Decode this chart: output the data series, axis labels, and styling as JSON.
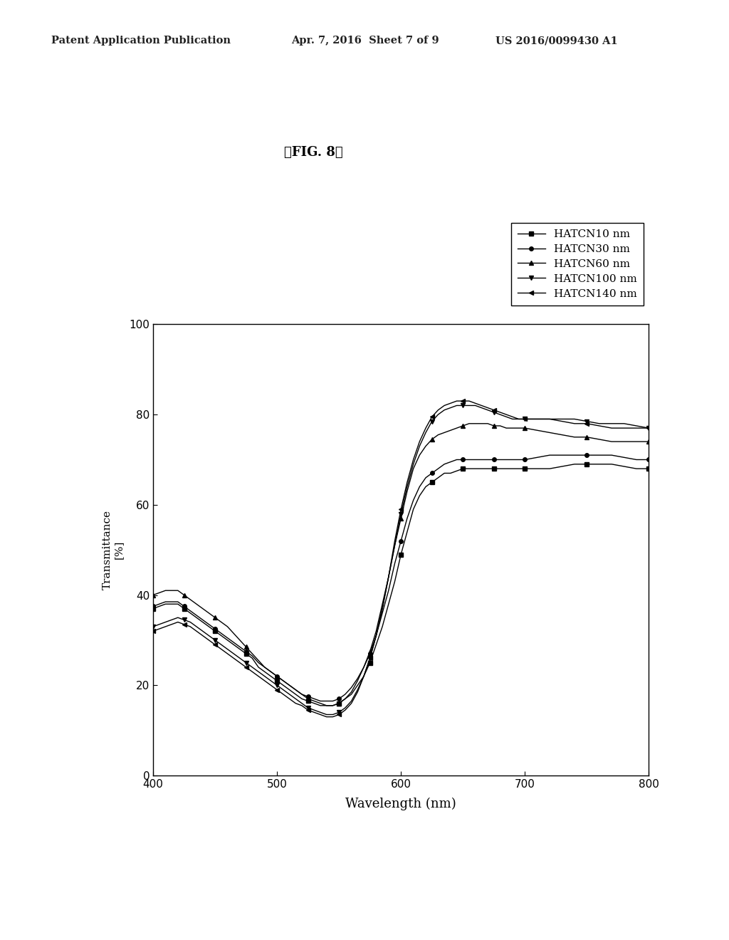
{
  "title": "【FIG. 8】",
  "header_left": "Patent Application Publication",
  "header_center": "Apr. 7, 2016  Sheet 7 of 9",
  "header_right": "US 2016/0099430 A1",
  "xlabel": "Wavelength (nm)",
  "ylabel": "Transmittance\n[%]",
  "xlim": [
    400,
    800
  ],
  "ylim": [
    0,
    100
  ],
  "xticks": [
    400,
    500,
    600,
    700,
    800
  ],
  "yticks": [
    0,
    20,
    40,
    60,
    80,
    100
  ],
  "legend_labels": [
    "HATCN10 nm",
    "HATCN30 nm",
    "HATCN60 nm",
    "HATCN100 nm",
    "HATCN140 nm"
  ],
  "series": {
    "HATCN10": {
      "y_at_x": {
        "400": 37,
        "405": 37.5,
        "410": 38,
        "415": 38,
        "420": 38,
        "425": 37,
        "430": 36,
        "435": 35,
        "440": 34,
        "445": 33,
        "450": 32,
        "455": 31,
        "460": 30,
        "465": 29,
        "470": 28,
        "475": 27,
        "480": 26,
        "485": 24,
        "490": 23,
        "495": 22,
        "500": 21,
        "505": 20,
        "510": 19,
        "515": 18,
        "520": 17,
        "525": 16.5,
        "530": 16,
        "535": 15.5,
        "540": 15.5,
        "545": 15.5,
        "550": 16,
        "555": 17,
        "560": 18,
        "565": 20,
        "570": 22,
        "575": 25,
        "580": 29,
        "585": 33,
        "590": 38,
        "595": 43,
        "600": 49,
        "605": 54,
        "610": 59,
        "615": 62,
        "620": 64,
        "625": 65,
        "630": 66,
        "635": 67,
        "640": 67,
        "645": 67.5,
        "650": 68,
        "655": 68,
        "660": 68,
        "665": 68,
        "670": 68,
        "675": 68,
        "680": 68,
        "685": 68,
        "690": 68,
        "695": 68,
        "700": 68,
        "710": 68,
        "720": 68,
        "730": 68.5,
        "740": 69,
        "750": 69,
        "760": 69,
        "770": 69,
        "780": 68.5,
        "790": 68,
        "800": 68
      },
      "marker": "s"
    },
    "HATCN30": {
      "y_at_x": {
        "400": 37.5,
        "405": 38,
        "410": 38.5,
        "415": 38.5,
        "420": 38.5,
        "425": 37.5,
        "430": 36.5,
        "435": 35.5,
        "440": 34.5,
        "445": 33.5,
        "450": 32.5,
        "455": 31.5,
        "460": 30.5,
        "465": 29.5,
        "470": 28.5,
        "475": 27.5,
        "480": 26.5,
        "485": 25,
        "490": 24,
        "495": 23,
        "500": 22,
        "505": 21,
        "510": 20,
        "515": 19,
        "520": 18,
        "525": 17.5,
        "530": 17,
        "535": 16.5,
        "540": 16.5,
        "545": 16.5,
        "550": 17,
        "555": 18,
        "560": 19.5,
        "565": 21.5,
        "570": 24,
        "575": 27,
        "580": 31,
        "585": 36,
        "590": 41,
        "595": 47,
        "600": 52,
        "605": 57,
        "610": 61,
        "615": 64,
        "620": 66,
        "625": 67,
        "630": 68,
        "635": 69,
        "640": 69.5,
        "645": 70,
        "650": 70,
        "655": 70,
        "660": 70,
        "665": 70,
        "670": 70,
        "675": 70,
        "680": 70,
        "685": 70,
        "690": 70,
        "695": 70,
        "700": 70,
        "710": 70.5,
        "720": 71,
        "730": 71,
        "740": 71,
        "750": 71,
        "760": 71,
        "770": 71,
        "780": 70.5,
        "790": 70,
        "800": 70
      },
      "marker": "o"
    },
    "HATCN60": {
      "y_at_x": {
        "400": 40,
        "405": 40.5,
        "410": 41,
        "415": 41,
        "420": 41,
        "425": 40,
        "430": 39,
        "435": 38,
        "440": 37,
        "445": 36,
        "450": 35,
        "455": 34,
        "460": 33,
        "465": 31.5,
        "470": 30,
        "475": 28.5,
        "480": 27,
        "485": 25.5,
        "490": 24,
        "495": 23,
        "500": 22,
        "505": 21,
        "510": 20,
        "515": 19,
        "520": 18,
        "525": 17,
        "530": 16.5,
        "535": 16,
        "540": 15.5,
        "545": 15.5,
        "550": 16,
        "555": 17,
        "560": 18.5,
        "565": 21,
        "570": 24,
        "575": 27.5,
        "580": 32,
        "585": 38,
        "590": 44,
        "595": 51,
        "600": 57,
        "605": 63,
        "610": 68,
        "615": 71,
        "620": 73,
        "625": 74.5,
        "630": 75.5,
        "635": 76,
        "640": 76.5,
        "645": 77,
        "650": 77.5,
        "655": 78,
        "660": 78,
        "665": 78,
        "670": 78,
        "675": 77.5,
        "680": 77.5,
        "685": 77,
        "690": 77,
        "695": 77,
        "700": 77,
        "710": 76.5,
        "720": 76,
        "730": 75.5,
        "740": 75,
        "750": 75,
        "760": 74.5,
        "770": 74,
        "780": 74,
        "790": 74,
        "800": 74
      },
      "marker": "^"
    },
    "HATCN100": {
      "y_at_x": {
        "400": 33,
        "405": 33.5,
        "410": 34,
        "415": 34.5,
        "420": 35,
        "425": 34.5,
        "430": 34,
        "435": 33,
        "440": 32,
        "445": 31,
        "450": 30,
        "455": 29,
        "460": 28,
        "465": 27,
        "470": 26,
        "475": 25,
        "480": 24,
        "485": 23,
        "490": 22,
        "495": 21,
        "500": 20,
        "505": 19,
        "510": 18,
        "515": 17,
        "520": 16,
        "525": 15,
        "530": 14.5,
        "535": 14,
        "540": 13.5,
        "545": 13.5,
        "550": 14,
        "555": 15,
        "560": 16.5,
        "565": 19,
        "570": 22,
        "575": 26,
        "580": 31,
        "585": 37,
        "590": 44,
        "595": 51,
        "600": 58,
        "605": 64,
        "610": 69,
        "615": 73,
        "620": 76,
        "625": 78.5,
        "630": 80,
        "635": 81,
        "640": 81.5,
        "645": 82,
        "650": 82,
        "655": 82,
        "660": 82,
        "665": 81.5,
        "670": 81,
        "675": 80.5,
        "680": 80,
        "685": 79.5,
        "690": 79,
        "695": 79,
        "700": 79,
        "710": 79,
        "720": 79,
        "730": 79,
        "740": 79,
        "750": 78.5,
        "760": 78,
        "770": 78,
        "780": 78,
        "790": 77.5,
        "800": 77
      },
      "marker": "v"
    },
    "HATCN140": {
      "y_at_x": {
        "400": 32,
        "405": 32.5,
        "410": 33,
        "415": 33.5,
        "420": 34,
        "425": 33.5,
        "430": 33,
        "435": 32,
        "440": 31,
        "445": 30,
        "450": 29,
        "455": 28,
        "460": 27,
        "465": 26,
        "470": 25,
        "475": 24,
        "480": 23,
        "485": 22,
        "490": 21,
        "495": 20,
        "500": 19,
        "505": 18,
        "510": 17,
        "515": 16,
        "520": 15.5,
        "525": 14.5,
        "530": 14,
        "535": 13.5,
        "540": 13,
        "545": 13,
        "550": 13.5,
        "555": 14.5,
        "560": 16,
        "565": 18.5,
        "570": 22,
        "575": 26,
        "580": 31,
        "585": 37,
        "590": 44,
        "595": 52,
        "600": 59,
        "605": 65,
        "610": 70,
        "615": 74,
        "620": 77,
        "625": 79.5,
        "630": 81,
        "635": 82,
        "640": 82.5,
        "645": 83,
        "650": 83,
        "655": 83,
        "660": 82.5,
        "665": 82,
        "670": 81.5,
        "675": 81,
        "680": 80.5,
        "685": 80,
        "690": 79.5,
        "695": 79,
        "700": 79,
        "710": 79,
        "720": 79,
        "730": 78.5,
        "740": 78,
        "750": 78,
        "760": 77.5,
        "770": 77,
        "780": 77,
        "790": 77,
        "800": 77
      },
      "marker": "<"
    }
  },
  "background_color": "#ffffff",
  "line_color": "#000000",
  "marker_size": 4,
  "marker_interval": 5
}
